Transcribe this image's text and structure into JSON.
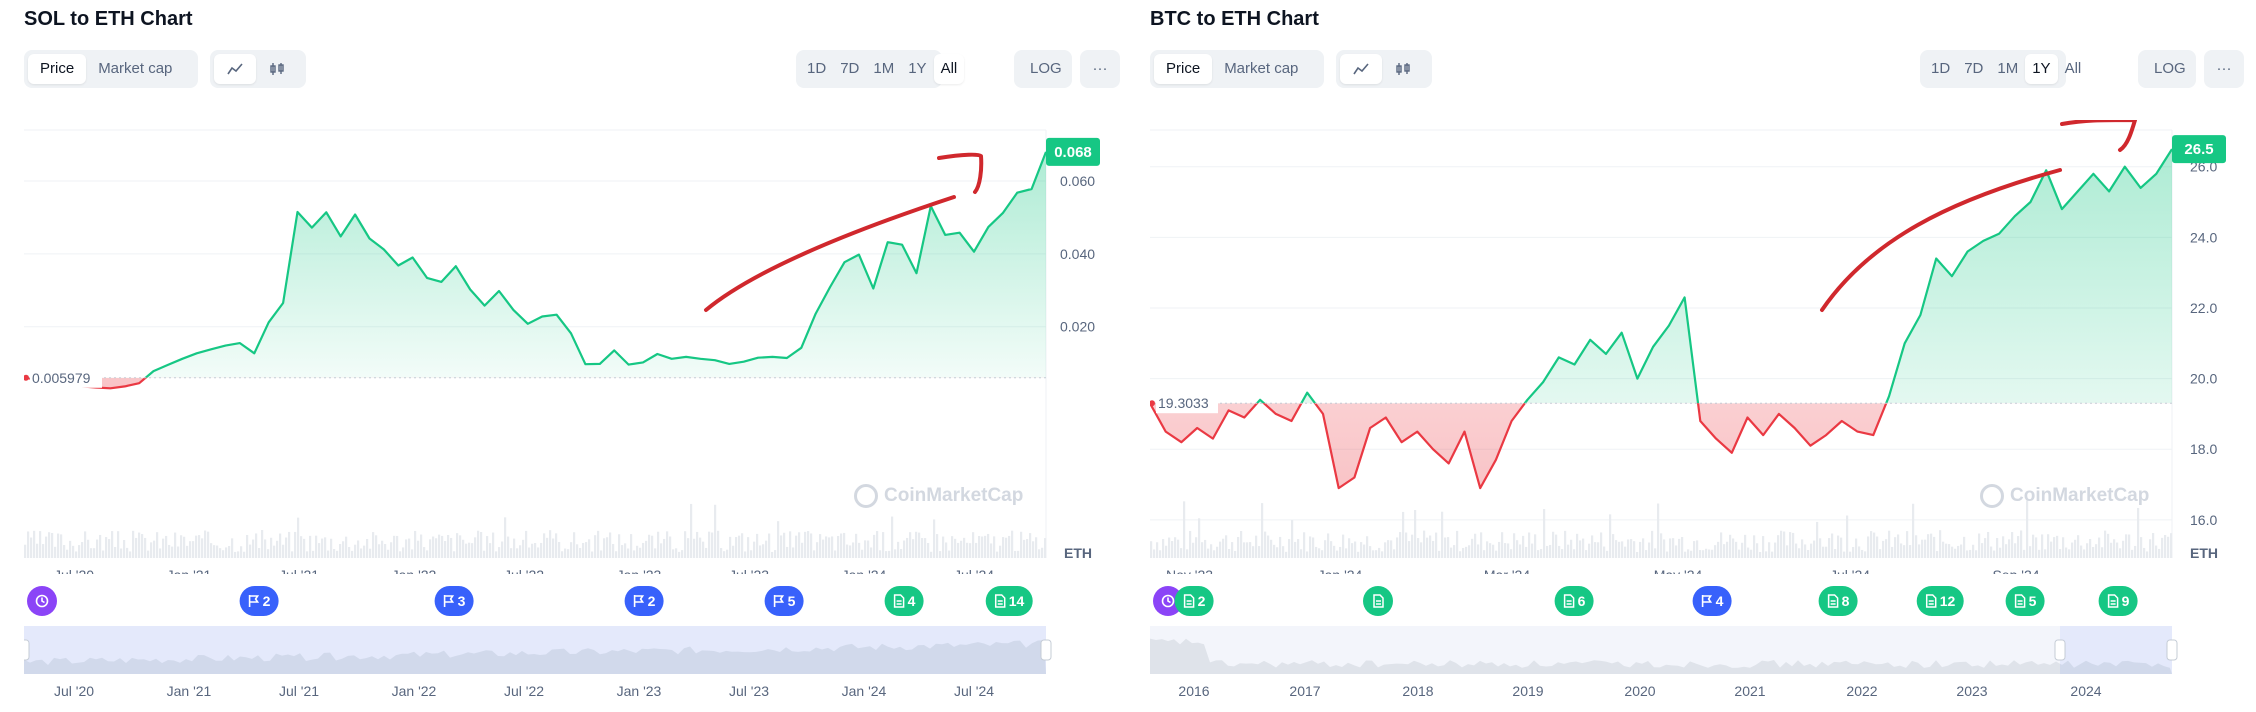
{
  "colors": {
    "green": "#16c784",
    "red": "#ea3943",
    "blue": "#3861fb",
    "purple": "#8b44f7",
    "annotation": "#d0282d"
  },
  "panels": [
    {
      "title": "SOL to ETH Chart",
      "metric_tabs": [
        {
          "label": "Price",
          "active": true
        },
        {
          "label": "Market cap",
          "active": false
        }
      ],
      "chart_type_icons": [
        {
          "icon": "line-chart-icon",
          "active": true
        },
        {
          "icon": "candlestick-icon",
          "active": false
        }
      ],
      "ranges": [
        {
          "label": "1D"
        },
        {
          "label": "7D"
        },
        {
          "label": "1M"
        },
        {
          "label": "1Y"
        },
        {
          "label": "All",
          "active": true
        }
      ],
      "log_label": "LOG",
      "more_label": "···",
      "currency": "ETH",
      "watermark": "CoinMarketCap",
      "markers": [
        {
          "type": "purple",
          "icon": "history-icon",
          "label": ""
        },
        {
          "type": "blue",
          "icon": "flag-icon",
          "label": "2"
        },
        {
          "type": "blue",
          "icon": "flag-icon",
          "label": "3"
        },
        {
          "type": "blue",
          "icon": "flag-icon",
          "label": "2"
        },
        {
          "type": "blue",
          "icon": "flag-icon",
          "label": "5"
        },
        {
          "type": "green",
          "icon": "document-icon",
          "label": "4"
        },
        {
          "type": "green",
          "icon": "document-icon",
          "label": "14"
        }
      ],
      "navigator_labels": [
        "Jul '20",
        "Jan '21",
        "Jul '21",
        "Jan '22",
        "Jul '22",
        "Jan '23",
        "Jul '23",
        "Jan '24",
        "Jul '24"
      ]
    },
    {
      "title": "BTC to ETH Chart",
      "metric_tabs": [
        {
          "label": "Price",
          "active": true
        },
        {
          "label": "Market cap",
          "active": false
        }
      ],
      "chart_type_icons": [
        {
          "icon": "line-chart-icon",
          "active": true
        },
        {
          "icon": "candlestick-icon",
          "active": false
        }
      ],
      "ranges": [
        {
          "label": "1D"
        },
        {
          "label": "7D"
        },
        {
          "label": "1M"
        },
        {
          "label": "1Y",
          "active": true
        },
        {
          "label": "All"
        }
      ],
      "log_label": "LOG",
      "more_label": "···",
      "currency": "ETH",
      "watermark": "CoinMarketCap",
      "markers": [
        {
          "type": "purple",
          "icon": "history-icon",
          "label": ""
        },
        {
          "type": "green",
          "icon": "document-icon",
          "label": "2"
        },
        {
          "type": "green",
          "icon": "document-icon",
          "label": ""
        },
        {
          "type": "green",
          "icon": "document-icon",
          "label": "6"
        },
        {
          "type": "blue",
          "icon": "flag-icon",
          "label": "4"
        },
        {
          "type": "green",
          "icon": "document-icon",
          "label": "8"
        },
        {
          "type": "green",
          "icon": "document-icon",
          "label": "12"
        },
        {
          "type": "green",
          "icon": "document-icon",
          "label": "5"
        },
        {
          "type": "green",
          "icon": "document-icon",
          "label": "9"
        }
      ],
      "navigator_labels": [
        "2016",
        "2017",
        "2018",
        "2019",
        "2020",
        "2021",
        "2022",
        "2023",
        "2024"
      ]
    }
  ],
  "chart_data": [
    {
      "type": "area",
      "title": "SOL to ETH Chart",
      "ylabel": "ETH",
      "ylim": [
        -0.0435,
        0.074
      ],
      "y_ticks": [
        0.02,
        0.04,
        0.06
      ],
      "y_tick_labels": [
        "0.020",
        "0.040",
        "0.060"
      ],
      "x_ticks": [
        "Jul '20",
        "Jan '21",
        "Jul '21",
        "Jan '22",
        "Jul '22",
        "Jan '23",
        "Jul '23",
        "Jan '24",
        "Jul '24"
      ],
      "baseline": 0.005979,
      "baseline_label": "0.005979",
      "current_label": "0.068",
      "grid": true,
      "series": [
        {
          "values": [
            0.00598,
            0.0055,
            0.005,
            0.0042,
            0.0036,
            0.0033,
            0.0031,
            0.0036,
            0.0045,
            0.0078,
            0.0095,
            0.0112,
            0.0127,
            0.0138,
            0.0148,
            0.0155,
            0.0127,
            0.0212,
            0.0265,
            0.0515,
            0.0472,
            0.0514,
            0.0448,
            0.0508,
            0.0442,
            0.0412,
            0.0368,
            0.039,
            0.0334,
            0.0323,
            0.0366,
            0.0302,
            0.0258,
            0.0298,
            0.0246,
            0.0208,
            0.0228,
            0.0233,
            0.0182,
            0.0097,
            0.0098,
            0.0135,
            0.0096,
            0.0102,
            0.0125,
            0.0112,
            0.0117,
            0.0112,
            0.0108,
            0.0098,
            0.0104,
            0.0115,
            0.0117,
            0.0114,
            0.0142,
            0.0236,
            0.0309,
            0.0377,
            0.0398,
            0.0305,
            0.0432,
            0.0425,
            0.0347,
            0.0531,
            0.0452,
            0.0458,
            0.0406,
            0.0474,
            0.0512,
            0.0568,
            0.0578,
            0.068
          ]
        }
      ]
    },
    {
      "type": "area",
      "title": "BTC to ETH Chart",
      "ylabel": "ETH",
      "ylim": [
        14.92,
        27.04
      ],
      "y_ticks": [
        16.0,
        18.0,
        20.0,
        22.0,
        24.0,
        26.0
      ],
      "y_tick_labels": [
        "16.0",
        "18.0",
        "20.0",
        "22.0",
        "24.0",
        "26.0"
      ],
      "x_ticks": [
        "Nov '23",
        "Jan '24",
        "Mar '24",
        "May '24",
        "Jul '24",
        "Sep '24"
      ],
      "baseline": 19.3033,
      "baseline_label": "19.3033",
      "current_label": "26.5",
      "grid": true,
      "series": [
        {
          "values": [
            19.3,
            18.5,
            18.2,
            18.6,
            18.3,
            19.1,
            18.9,
            19.4,
            19.0,
            18.8,
            19.6,
            19.0,
            16.9,
            17.2,
            18.6,
            18.9,
            18.2,
            18.5,
            18.0,
            17.6,
            18.5,
            16.9,
            17.7,
            18.8,
            19.4,
            19.9,
            20.6,
            20.4,
            21.1,
            20.7,
            21.3,
            20.0,
            20.9,
            21.5,
            22.3,
            18.8,
            18.3,
            17.9,
            18.9,
            18.4,
            19.0,
            18.6,
            18.1,
            18.4,
            18.8,
            18.5,
            18.4,
            19.5,
            21.0,
            21.8,
            23.4,
            22.9,
            23.6,
            23.9,
            24.1,
            24.6,
            25.0,
            25.9,
            24.8,
            25.3,
            25.8,
            25.3,
            26.0,
            25.4,
            25.8,
            26.5
          ]
        }
      ]
    }
  ]
}
